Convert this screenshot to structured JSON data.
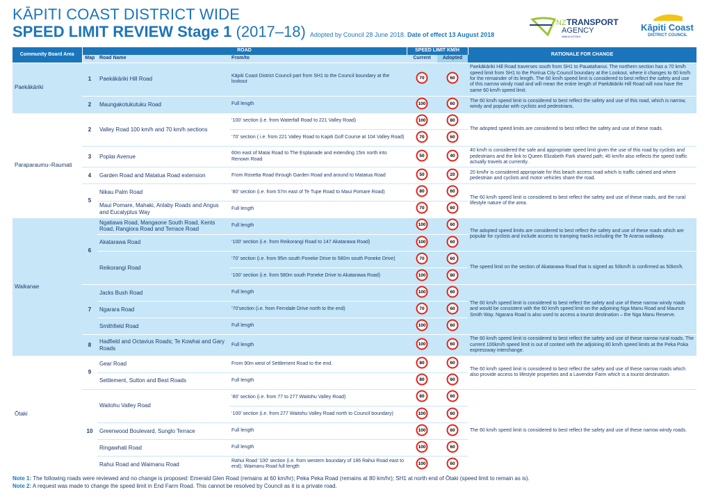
{
  "header": {
    "title_line1": "KĀPITI COAST DISTRICT WIDE",
    "title_line2": "SPEED LIMIT REVIEW Stage 1",
    "title_years": "(2017–18)",
    "adopted": "Adopted by Council 28 June 2018.",
    "effect": "Date of effect 13 August 2018"
  },
  "logos": {
    "nzta_nz": "NZ",
    "nzta_transport": "TRANSPORT",
    "nzta_agency": "AGENCY",
    "nzta_maori": "WAKA KOTAHI",
    "kcdc_name": "Kāpiti Coast",
    "kcdc_sub": "DISTRICT COUNCIL"
  },
  "table": {
    "headers": {
      "area": "Community Board Area",
      "road": "ROAD",
      "speed": "SPEED LIMIT KM/H",
      "rationale": "RATIONALE FOR CHANGE",
      "map": "Map",
      "road_name": "Road Name",
      "from_to": "From/to",
      "current": "Current",
      "adopted": "Adopted"
    },
    "areas": [
      {
        "name": "Paekākāriki",
        "maps": [
          {
            "map": "1",
            "blocks": [
              {
                "rationale": "Paekākāriki Hill Road traverses south from SH1 to Pauatahanui. The northern section has a 70 km/h speed limit from SH1 to the Porirua City Council boundary at the Lookout, where it changes to 60 km/h for the remainder of its length. The 60 km/h speed limit is considered to best reflect the safety and use of this narrow windy road and will mean the entire length of Paekākāriki Hill Road will now have the same 60 km/h speed limit.",
                "roads": [
                  {
                    "name": "Paekākāriki Hill Road",
                    "segments": [
                      {
                        "from_to": "Kāpiti Coast District Council part from SH1 to the Council boundary at the lookout",
                        "current": 70,
                        "adopted": 60
                      }
                    ]
                  }
                ]
              }
            ]
          },
          {
            "map": "2",
            "blocks": [
              {
                "rationale": "The 60 km/h speed limit is considered to best reflect the safety and use of this road, which is narrow, windy and popular with cyclists and pedestrians.",
                "roads": [
                  {
                    "name": "Maungakotukutuku Road",
                    "segments": [
                      {
                        "from_to": "Full length",
                        "current": 100,
                        "adopted": 60
                      }
                    ]
                  }
                ]
              }
            ]
          }
        ]
      },
      {
        "name": "Paraparaumu–Raumati",
        "maps": [
          {
            "map": "2",
            "blocks": [
              {
                "rationale": "The adopted speed limits are considered to best reflect the safety and use of these roads.",
                "roads": [
                  {
                    "name": "Valley Road 100 km/h and 70 km/h sections",
                    "segments": [
                      {
                        "from_to": "‘100’ section (i.e. from Waterfall Road to 221 Valley Road)",
                        "current": 100,
                        "adopted": 80
                      },
                      {
                        "from_to": "‘70’ section ( i.e. from 221 Valley Road  to Kapiti Golf Course at 104 Valley Road)",
                        "current": 70,
                        "adopted": 60
                      }
                    ]
                  }
                ]
              }
            ]
          },
          {
            "map": "3",
            "blocks": [
              {
                "rationale": "40 km/h is considered the safe and appropriate speed limit given the use of this road by cyclists and pedestrians and the link to Queen Elizabeth Park shared path; 40 km/hr also reflects the speed traffic actually travels at currently.",
                "roads": [
                  {
                    "name": "Poplar Avenue",
                    "segments": [
                      {
                        "from_to": "60m east of Matai Road to The Esplanade and extending 15m north into Renown Road",
                        "current": 50,
                        "adopted": 40
                      }
                    ]
                  }
                ]
              }
            ]
          },
          {
            "map": "4",
            "blocks": [
              {
                "rationale": "20 km/hr is considered appropriate for this beach access road which is traffic calmed and where pedestrian and cyclists and motor vehicles share the road.",
                "roads": [
                  {
                    "name": "Garden Road and Matatua Road extension",
                    "segments": [
                      {
                        "from_to": "From Rosetta Road through Garden Road and around to Matatua Road",
                        "current": 50,
                        "adopted": 20
                      }
                    ]
                  }
                ]
              }
            ]
          },
          {
            "map": "5",
            "blocks": [
              {
                "rationale": "The 60 km/h speed limit is considered to best reflect the safety and use of these roads, and the rural lifestyle nature of the area.",
                "roads": [
                  {
                    "name": "Nikau Palm Road",
                    "segments": [
                      {
                        "from_to": "‘80’ section (i.e. from 57m east of Te Tupe Road to Maui Pomare Road)",
                        "current": 80,
                        "adopted": 60
                      }
                    ]
                  },
                  {
                    "name": "Maui Pomare, Mahaki, Anlaby Roads and Angus and Eucalyptus Way",
                    "segments": [
                      {
                        "from_to": "Full length",
                        "current": 70,
                        "adopted": 60
                      }
                    ]
                  }
                ]
              }
            ]
          }
        ]
      },
      {
        "name": "Waikanae",
        "maps": [
          {
            "map": "6",
            "blocks": [
              {
                "rationale": "The adopted speed limits are considered to best reflect the safety and use of these roads which are popular for cyclists and include access to tramping tracks including the Te Araroa walkway.",
                "roads": [
                  {
                    "name": "Ngatiawa Road, Mangaone South Road, Kents Road, Rangiora Road and Terrace Road",
                    "segments": [
                      {
                        "from_to": "Full length",
                        "current": 100,
                        "adopted": 60
                      }
                    ]
                  },
                  {
                    "name": "Akatarawa Road",
                    "segments": [
                      {
                        "from_to": "‘100’ section (i.e. from Reikorangi Road to 147 Akatarawa Road)",
                        "current": 100,
                        "adopted": 60
                      }
                    ]
                  }
                ]
              },
              {
                "rationale": "The speed limit on the section of Akatarawa Road that is signed as 50km/h is confirmed as 50km/h.",
                "roads": [
                  {
                    "name": "Reikorangi Road",
                    "segments": [
                      {
                        "from_to": "‘70’ section (i.e. from 95m south Poneke Drive to 580m south Poneke Drive)",
                        "current": 70,
                        "adopted": 60
                      },
                      {
                        "from_to": "‘100’ section (i.e. from 580m south Poneke Drive to Akatarawa Road)",
                        "current": 100,
                        "adopted": 80
                      }
                    ]
                  }
                ]
              }
            ]
          },
          {
            "map": "7",
            "blocks": [
              {
                "rationale": "The 60 km/h speed limit is considered to best reflect the safety and use of these narrow windy roads and would be consistent with the 60 km/h speed limit on the adjoining Nga Manu Road and Maurice Smith Way. Ngarara Road is also used to access a tourist destination – the Nga Manu Reserve.",
                "roads": [
                  {
                    "name": "Jacks Bush Road",
                    "segments": [
                      {
                        "from_to": "Full length",
                        "current": 100,
                        "adopted": 60
                      }
                    ]
                  },
                  {
                    "name": "Ngarara Road",
                    "segments": [
                      {
                        "from_to": "‘70’section (i.e. from Ferndale Drive north to the end)",
                        "current": 70,
                        "adopted": 60
                      }
                    ]
                  },
                  {
                    "name": "Smithfield Road",
                    "segments": [
                      {
                        "from_to": "Full length",
                        "current": 100,
                        "adopted": 60
                      }
                    ]
                  }
                ]
              }
            ]
          },
          {
            "map": "8",
            "blocks": [
              {
                "rationale": "The 60 km/h speed limit is considered to best reflect the safety and use of these narrow rural roads. The current 100km/h speed limit is out of context with the adjoining 80 km/h speed limits at the Peka Poka expressway interchange.",
                "roads": [
                  {
                    "name": "Hadfield and Octavius Roads; Te Kowhai and Gary Roads",
                    "segments": [
                      {
                        "from_to": "Full length",
                        "current": 100,
                        "adopted": 60
                      }
                    ]
                  }
                ]
              }
            ]
          }
        ]
      },
      {
        "name": "Ōtaki",
        "maps": [
          {
            "map": "9",
            "blocks": [
              {
                "rationale": "The 60 km/h speed limit is considered to best reflect the safety and use of these narrow roads which also provide access to lifestyle properties and a Lavendor Farm which is a tourist destination.",
                "roads": [
                  {
                    "name": "Gear Road",
                    "segments": [
                      {
                        "from_to": "From 90m west of Settlement Road to the end.",
                        "current": 80,
                        "adopted": 60
                      }
                    ]
                  },
                  {
                    "name": "Settlement, Sutton and Best Roads",
                    "segments": [
                      {
                        "from_to": "Full length",
                        "current": 80,
                        "adopted": 60
                      }
                    ]
                  }
                ]
              }
            ]
          },
          {
            "map": "10",
            "blocks": [
              {
                "rationale": "The 60 km/h speed limit is considered to best reflect the safety and use of these narrow windy roads.",
                "roads": [
                  {
                    "name": "Waitohu Valley Road",
                    "segments": [
                      {
                        "from_to": "‘80’ section (i.e. from 77 to 277 Waitohu Valley Road)",
                        "current": 80,
                        "adopted": 60
                      },
                      {
                        "from_to": "‘100’ section (i.e. from 277 Waitohu Valley Road north to Council boundary)",
                        "current": 100,
                        "adopted": 60
                      }
                    ]
                  },
                  {
                    "name": "Greenwood Boulevard, Sunglo Terrace",
                    "segments": [
                      {
                        "from_to": "Full length",
                        "current": 100,
                        "adopted": 60
                      }
                    ]
                  },
                  {
                    "name": "Ringawhati Road",
                    "segments": [
                      {
                        "from_to": "Full length",
                        "current": 100,
                        "adopted": 60
                      }
                    ]
                  },
                  {
                    "name": "Rahui Road and Waimanu Road",
                    "segments": [
                      {
                        "from_to": "Rahui Road ‘100’ section (i.e. from western boundary of 186 Rahui Road east to end); Waimanu Road full length",
                        "current": 100,
                        "adopted": 60
                      }
                    ]
                  }
                ]
              }
            ]
          }
        ]
      }
    ]
  },
  "notes": [
    {
      "label": "Note 1:",
      "text": "The following roads were reviewed and no change is proposed: Emerald Glen Road (remains at 60 km/hr); Peka Peka Road (remains at 80 km/hr); SH1 at north end of Ōtaki (speed limit to remain as is)."
    },
    {
      "label": "Note 2:",
      "text": "A request was made to change the speed limit in End Farm Road. This cannot be resolved by Council as it is a private road."
    }
  ]
}
